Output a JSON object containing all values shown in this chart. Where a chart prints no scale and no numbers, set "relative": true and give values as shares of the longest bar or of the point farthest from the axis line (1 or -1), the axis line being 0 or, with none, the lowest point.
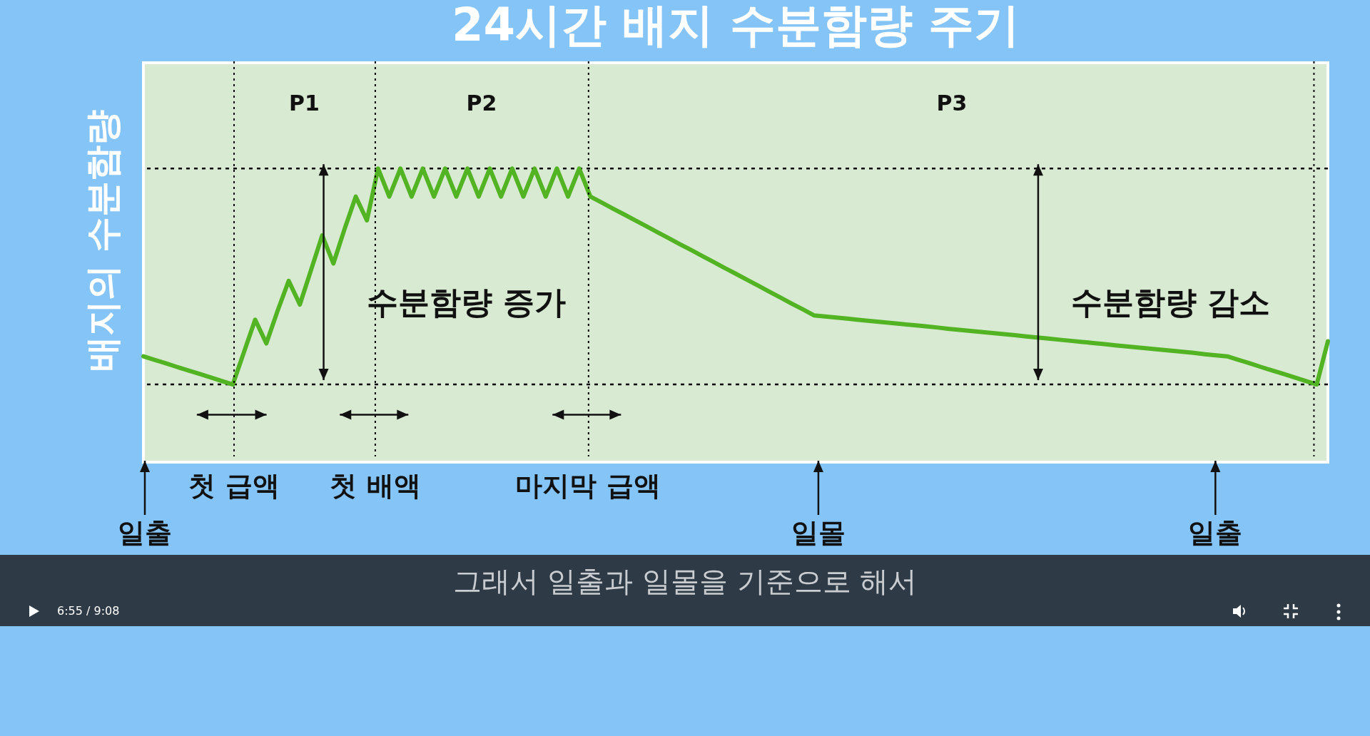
{
  "chart_data": {
    "type": "line",
    "title": "24시간 배지 수분함량 주기",
    "ylabel": "배지의 수분함량",
    "relative": true,
    "line_style": "solid",
    "tick_labels": false,
    "categories": [
      null,
      null,
      null,
      null,
      null,
      null,
      null,
      null,
      null,
      null,
      null,
      null,
      null,
      null,
      null,
      null,
      null,
      null,
      null,
      null,
      null,
      null,
      null,
      null,
      null,
      null,
      null,
      null,
      null,
      null,
      null,
      null,
      null,
      null,
      null,
      null,
      null,
      null,
      null,
      null,
      null,
      null,
      null,
      null,
      null,
      null,
      null,
      null,
      null,
      null,
      null,
      null,
      null,
      null,
      null,
      null,
      null,
      null,
      null,
      null,
      null,
      null,
      null,
      null,
      null,
      null,
      null,
      null,
      null,
      null,
      null,
      null,
      null,
      null,
      null,
      null,
      null,
      null,
      null,
      null,
      null,
      null,
      null,
      null,
      null,
      null,
      null,
      null,
      null,
      null,
      null,
      null,
      null,
      null,
      null,
      null,
      null,
      null,
      null,
      null,
      null,
      null,
      null,
      null,
      null,
      null,
      null
    ],
    "series": [
      {
        "color": "#52b323",
        "values": [
          0.13,
          0.114,
          0.098,
          0.081,
          0.065,
          0.049,
          0.033,
          0.016,
          0,
          0.15,
          0.3,
          0.19,
          0.34,
          0.48,
          0.37,
          0.53,
          0.69,
          0.56,
          0.72,
          0.87,
          0.76,
          1,
          0.87,
          1,
          0.87,
          1,
          0.87,
          1,
          0.87,
          1,
          0.87,
          1,
          0.87,
          1,
          0.87,
          1,
          0.87,
          1,
          0.87,
          1,
          0.87,
          0.843,
          0.815,
          0.788,
          0.76,
          0.733,
          0.705,
          0.678,
          0.65,
          0.623,
          0.595,
          0.568,
          0.54,
          0.513,
          0.485,
          0.458,
          0.43,
          0.403,
          0.375,
          0.348,
          0.32,
          0.315,
          0.31,
          0.305,
          0.299,
          0.294,
          0.289,
          0.284,
          0.279,
          0.274,
          0.269,
          0.264,
          0.258,
          0.253,
          0.248,
          0.243,
          0.238,
          0.233,
          0.228,
          0.222,
          0.217,
          0.212,
          0.207,
          0.202,
          0.197,
          0.192,
          0.187,
          0.181,
          0.176,
          0.171,
          0.166,
          0.161,
          0.156,
          0.151,
          0.146,
          0.14,
          0.135,
          0.13,
          0.114,
          0.098,
          0.081,
          0.065,
          0.049,
          0.033,
          0.016,
          0,
          0.2
        ]
      }
    ],
    "ref_lines": [
      {
        "axis": "y",
        "value": 0,
        "color": "#000000",
        "line_style": "dotted"
      },
      {
        "axis": "y",
        "value": 1,
        "color": "#000000",
        "line_style": "dotted"
      }
    ],
    "annotations": [
      "P1",
      "P2",
      "P3",
      "수분함량 증가",
      "수분함량 감소",
      "첫 급액",
      "첫 배액",
      "마지막 급액",
      "일출",
      "일몰",
      "일출",
      "그래서 일출과 일몰을 기준으로 해서",
      "6:55 / 9:08"
    ]
  }
}
